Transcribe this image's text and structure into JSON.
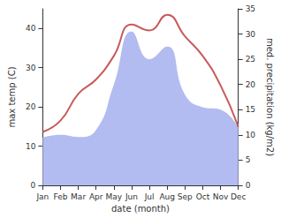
{
  "chart_data": {
    "type": "line",
    "x_label": "date (month)",
    "y_label": "max temp (C)",
    "y2_label": "med. precipitation (kg/m2)",
    "categories": [
      "Jan",
      "Feb",
      "Mar",
      "Apr",
      "May",
      "Jun",
      "Jul",
      "Aug",
      "Sep",
      "Oct",
      "Nov",
      "Dec"
    ],
    "series": [
      {
        "type": "area",
        "color": "#b3bcf0",
        "axis": "y2",
        "values": [
          9.5,
          10,
          9.6,
          11,
          20,
          30.5,
          25,
          27.5,
          18,
          15.5,
          15,
          11.5
        ]
      },
      {
        "type": "line",
        "color": "#c85a5a",
        "axis": "y",
        "values": [
          13.6,
          16.5,
          23.3,
          27,
          33,
          41,
          39.5,
          43.5,
          38,
          33,
          25.5,
          15
        ]
      }
    ],
    "ylim": [
      0,
      45
    ],
    "yticks": [
      0,
      10,
      20,
      30,
      40
    ],
    "y2lim": [
      0,
      35
    ],
    "y2ticks": [
      0,
      5,
      10,
      15,
      20,
      25,
      30,
      35
    ],
    "grid": false
  }
}
